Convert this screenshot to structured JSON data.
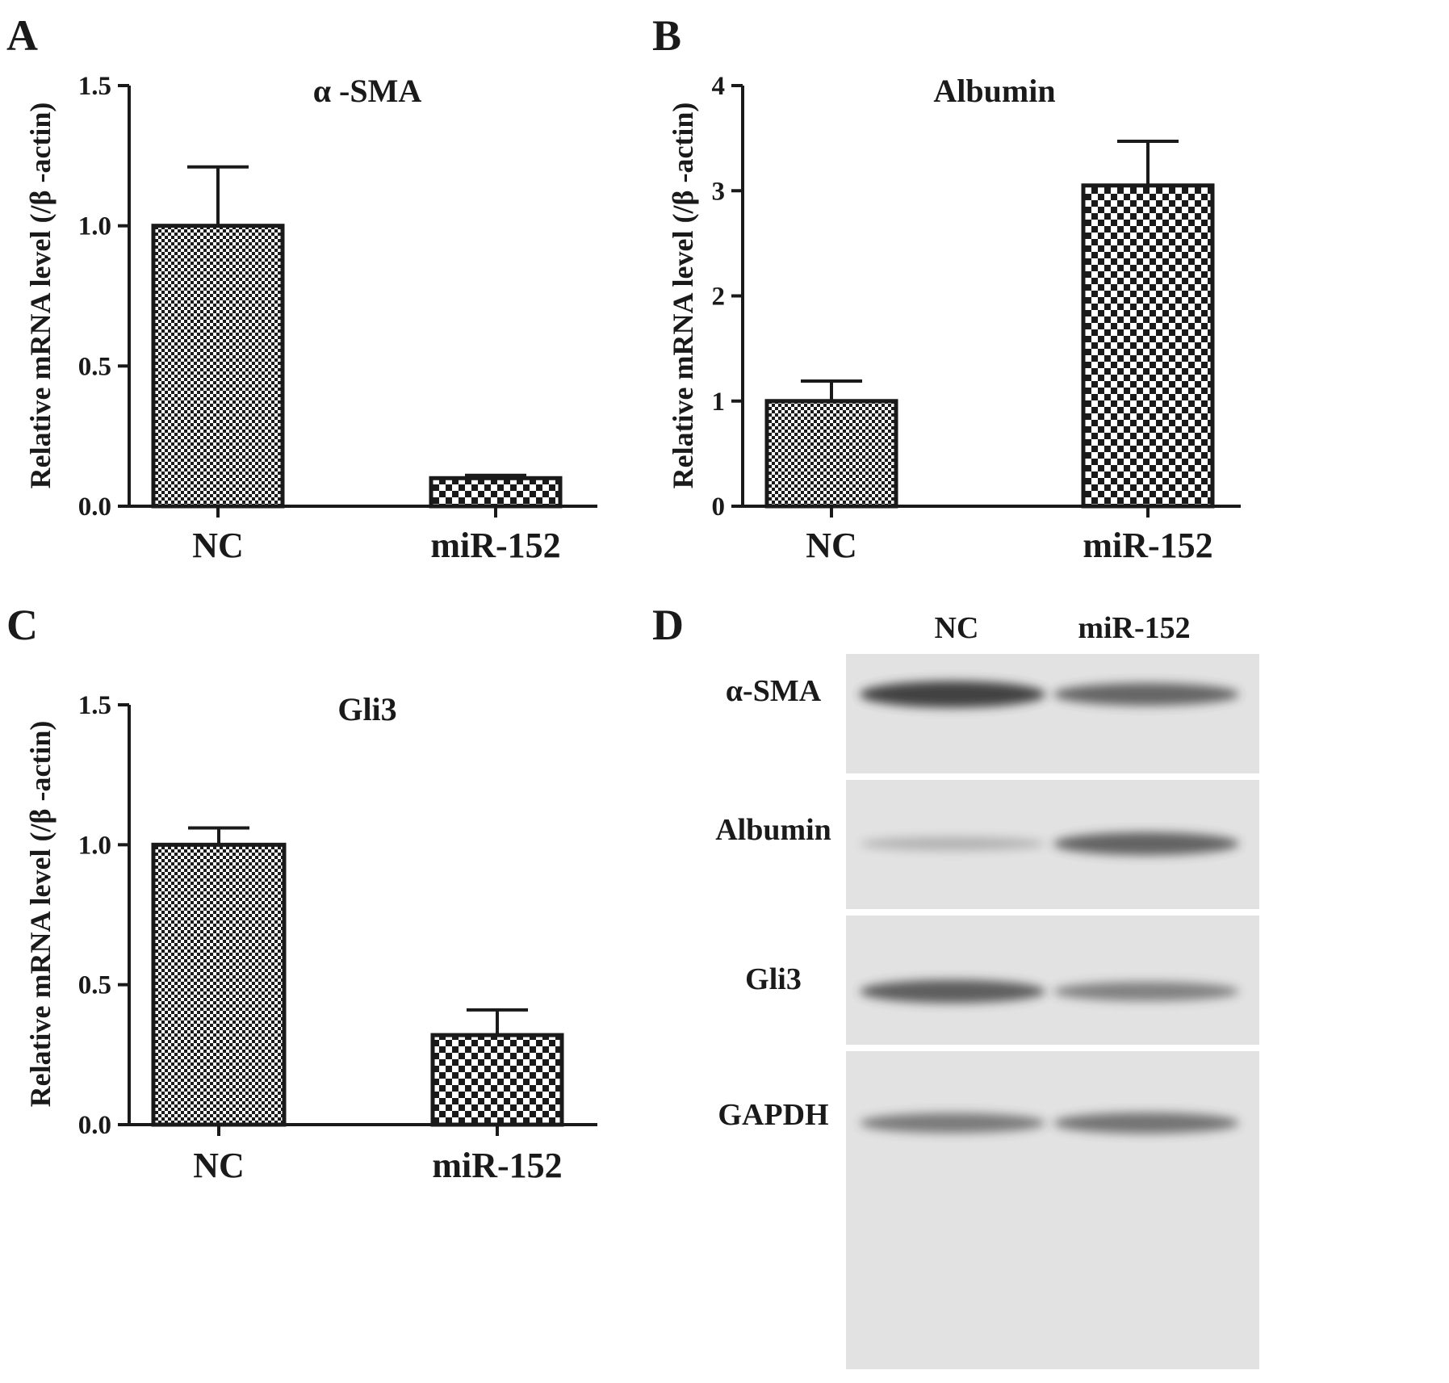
{
  "chart_data": [
    {
      "panel": "A",
      "type": "bar",
      "title": "α -SMA",
      "ylabel": "Relative mRNA level (/β -actin)",
      "xlabel": "",
      "categories": [
        "NC",
        "miR-152"
      ],
      "values": [
        1.0,
        0.1
      ],
      "error": [
        0.21,
        0.01
      ],
      "ylim": [
        0,
        1.5
      ],
      "yticks": [
        0,
        0.5,
        1.0,
        1.5
      ],
      "ytick_labels": [
        "0.0",
        "0.5",
        "1.0",
        "1.5"
      ],
      "fills": [
        "fine-dots",
        "checker"
      ],
      "grid": false
    },
    {
      "panel": "B",
      "type": "bar",
      "title": "Albumin",
      "ylabel": "Relative mRNA level (/β -actin)",
      "xlabel": "",
      "categories": [
        "NC",
        "miR-152"
      ],
      "values": [
        1.0,
        3.05
      ],
      "error": [
        0.19,
        0.42
      ],
      "ylim": [
        0,
        4
      ],
      "yticks": [
        0,
        1,
        2,
        3,
        4
      ],
      "ytick_labels": [
        "0",
        "1",
        "2",
        "3",
        "4"
      ],
      "fills": [
        "fine-dots",
        "checker"
      ],
      "grid": false
    },
    {
      "panel": "C",
      "type": "bar",
      "title": "Gli3",
      "ylabel": "Relative mRNA level (/β -actin)",
      "xlabel": "",
      "categories": [
        "NC",
        "miR-152"
      ],
      "values": [
        1.0,
        0.32
      ],
      "error": [
        0.06,
        0.09
      ],
      "ylim": [
        0,
        1.5
      ],
      "yticks": [
        0,
        0.5,
        1.0,
        1.5
      ],
      "ytick_labels": [
        "0.0",
        "0.5",
        "1.0",
        "1.5"
      ],
      "fills": [
        "fine-dots",
        "checker"
      ],
      "grid": false
    }
  ],
  "western_blot": {
    "panel": "D",
    "lanes": [
      "NC",
      "miR-152"
    ],
    "rows": [
      {
        "label": "α-SMA",
        "intensity": [
          0.95,
          0.7
        ]
      },
      {
        "label": "Albumin",
        "intensity": [
          0.15,
          0.72
        ]
      },
      {
        "label": "Gli3",
        "intensity": [
          0.75,
          0.5
        ]
      },
      {
        "label": "GAPDH",
        "intensity": [
          0.55,
          0.6
        ]
      }
    ]
  },
  "colors": {
    "bar_stroke": "#1a1a1a",
    "background": "#ffffff",
    "blot_bg": "#e2e2e2",
    "band": "#3a3a3a"
  }
}
